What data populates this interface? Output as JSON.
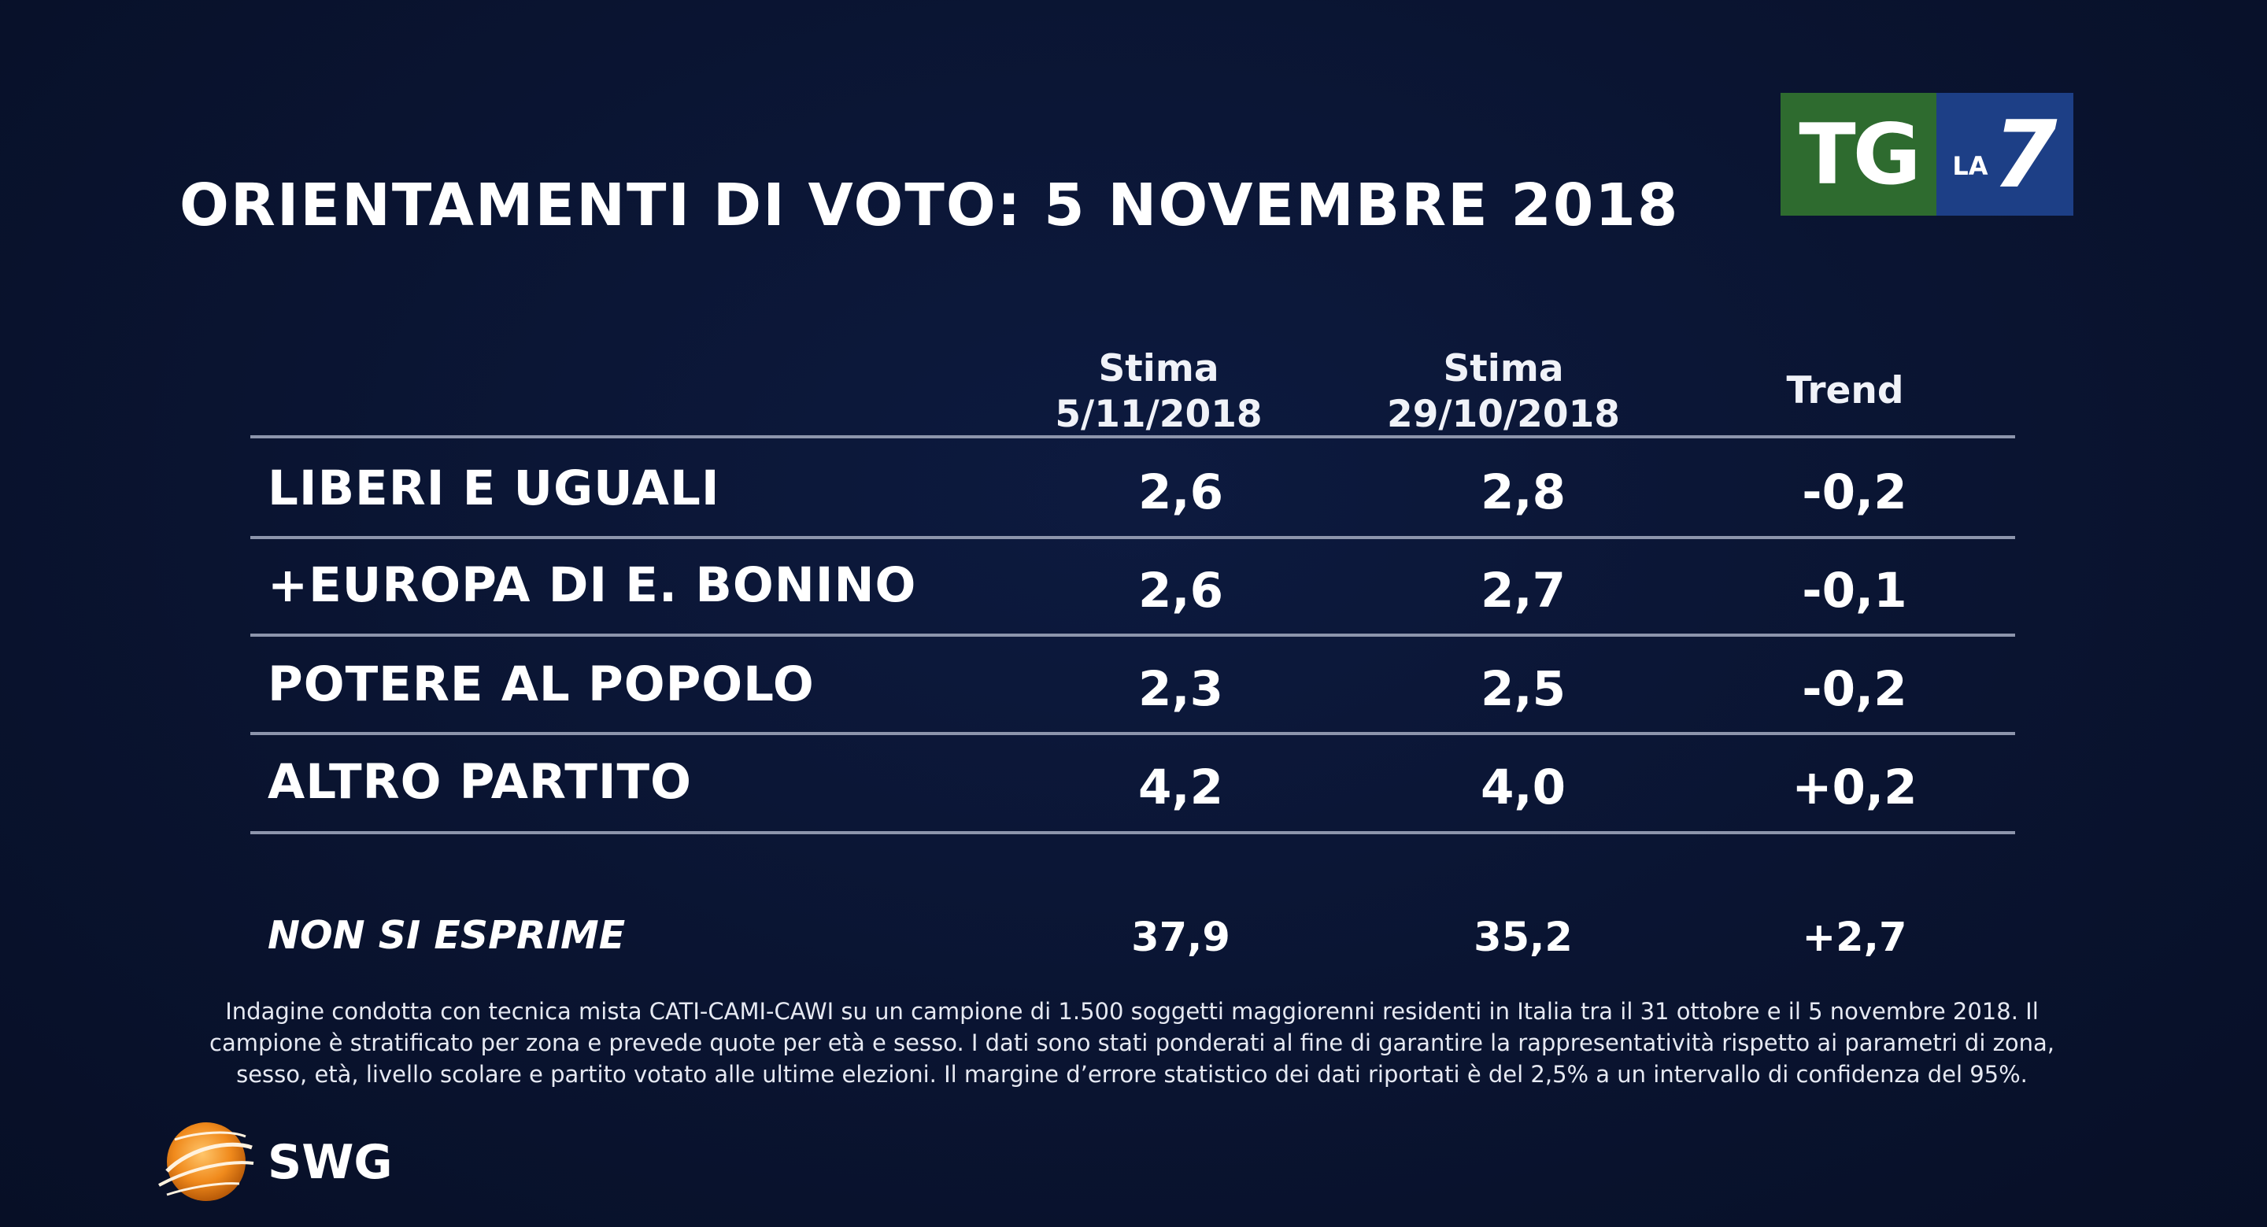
{
  "title": "ORIENTAMENTI DI VOTO: 5 NOVEMBRE 2018",
  "logo": {
    "tg": "TG",
    "la": "LA",
    "seven": "7"
  },
  "columns": [
    {
      "line1": "Stima",
      "line2": "5/11/2018"
    },
    {
      "line1": "Stima",
      "line2": "29/10/2018"
    },
    {
      "line1": "Trend",
      "line2": ""
    }
  ],
  "rows": [
    {
      "party": "LIBERI E UGUALI",
      "v1": "2,6",
      "v2": "2,8",
      "trend": "-0,2"
    },
    {
      "party": "+EUROPA DI E. BONINO",
      "v1": "2,6",
      "v2": "2,7",
      "trend": "-0,1"
    },
    {
      "party": "POTERE AL POPOLO",
      "v1": "2,3",
      "v2": "2,5",
      "trend": "-0,2"
    },
    {
      "party": "ALTRO PARTITO",
      "v1": "4,2",
      "v2": "4,0",
      "trend": "+0,2"
    }
  ],
  "non_si_esprime": {
    "label": "NON SI ESPRIME",
    "v1": "37,9",
    "v2": "35,2",
    "trend": "+2,7"
  },
  "footnote": "Indagine condotta con tecnica mista CATI-CAMI-CAWI su un campione di 1.500 soggetti maggiorenni residenti in Italia tra il 31 ottobre e il 5 novembre 2018. Il campione è stratificato per zona e prevede quote per età e sesso. I dati sono stati ponderati al fine di garantire la rappresentatività rispetto ai parametri di zona, sesso, età, livello scolare e partito votato alle ultime elezioni. Il margine d’errore statistico dei dati riportati è del 2,5% a un intervallo di confidenza del 95%.",
  "brand": "SWG",
  "chart_data": {
    "type": "table",
    "title": "ORIENTAMENTI DI VOTO: 5 NOVEMBRE 2018",
    "columns": [
      "Stima 5/11/2018",
      "Stima 29/10/2018",
      "Trend"
    ],
    "categories": [
      "LIBERI E UGUALI",
      "+EUROPA DI E. BONINO",
      "POTERE AL POPOLO",
      "ALTRO PARTITO",
      "NON SI ESPRIME"
    ],
    "series": [
      {
        "name": "Stima 5/11/2018",
        "values": [
          2.6,
          2.6,
          2.3,
          4.2,
          37.9
        ]
      },
      {
        "name": "Stima 29/10/2018",
        "values": [
          2.8,
          2.7,
          2.5,
          4.0,
          35.2
        ]
      },
      {
        "name": "Trend",
        "values": [
          -0.2,
          -0.1,
          -0.2,
          0.2,
          2.7
        ]
      }
    ]
  }
}
